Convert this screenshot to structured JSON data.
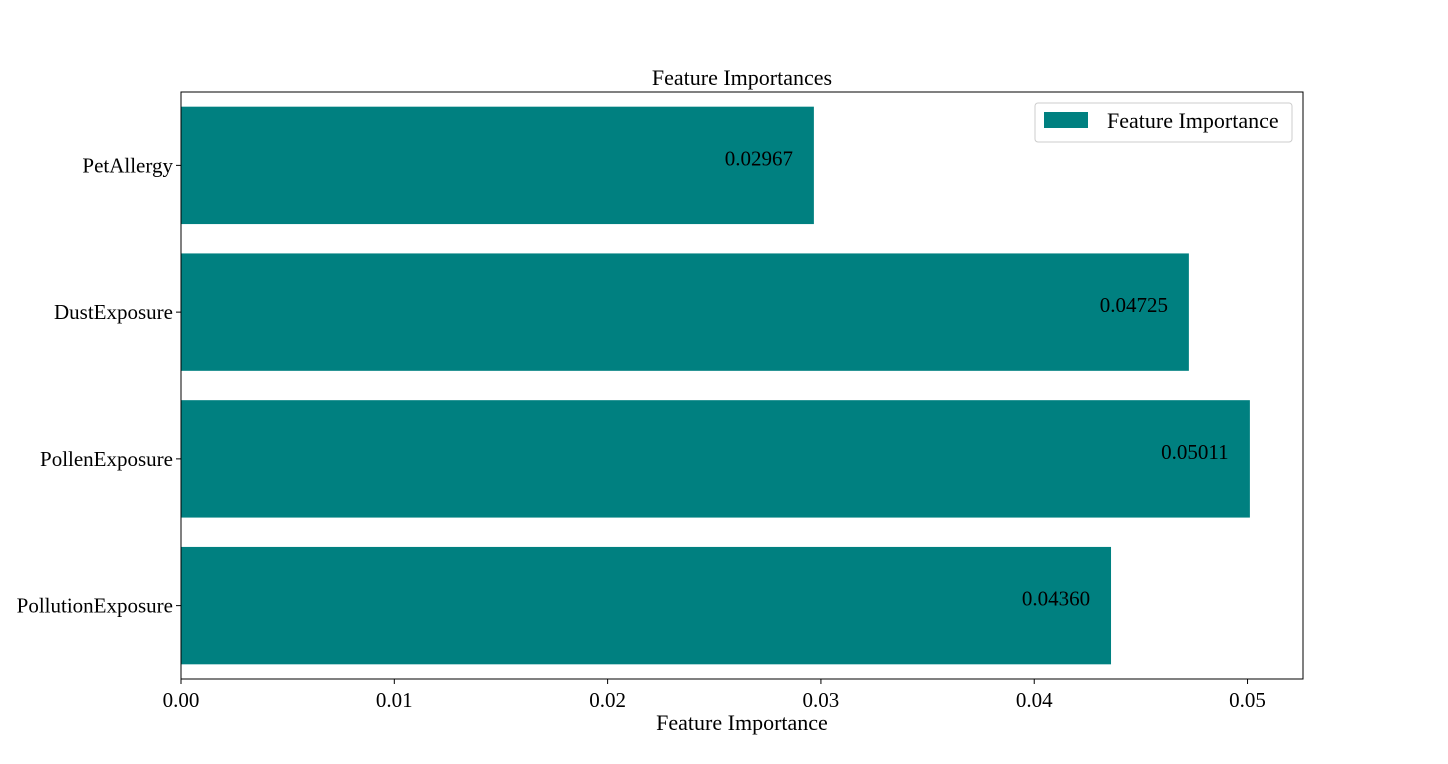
{
  "colors": {
    "bar": "#008080",
    "axis": "#000000",
    "background": "#ffffff"
  },
  "chart_data": {
    "type": "bar",
    "orientation": "horizontal",
    "title": "Feature Importances",
    "xlabel": "Feature Importance",
    "ylabel": "",
    "categories": [
      "PollutionExposure",
      "PollenExposure",
      "DustExposure",
      "PetAllergy"
    ],
    "series": [
      {
        "name": "Feature Importance",
        "values": [
          0.0436,
          0.05011,
          0.04725,
          0.02967
        ]
      }
    ],
    "data_labels": [
      "0.04360",
      "0.05011",
      "0.04725",
      "0.02967"
    ],
    "xlim": [
      0.0,
      0.0526
    ],
    "xticks": [
      0.0,
      0.01,
      0.02,
      0.03,
      0.04,
      0.05
    ],
    "xtick_labels": [
      "0.00",
      "0.01",
      "0.02",
      "0.03",
      "0.04",
      "0.05"
    ],
    "grid": false,
    "legend": "top-right"
  }
}
